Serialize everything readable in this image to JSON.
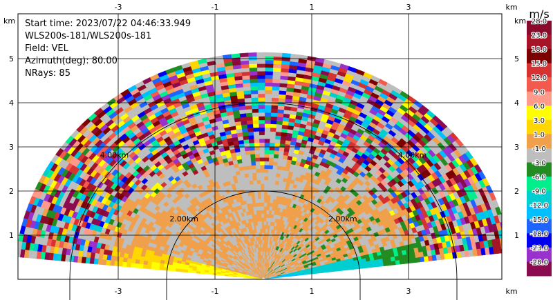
{
  "info": {
    "start_time": "Start time: 2023/07/22 04:46:33.949",
    "instrument": "WLS200s-181/WLS200s-181",
    "field": "Field: VEL",
    "azimuth": "Azimuth(deg): 80.00",
    "nrays": "NRays: 85"
  },
  "chart_data": {
    "type": "heatmap",
    "subtype": "radar RHI (range-height) plot",
    "field": "VEL",
    "x_axis": {
      "unit_label": "km",
      "range": [
        -5.5,
        5.0
      ],
      "ticks": [
        -3,
        -1,
        1,
        3
      ]
    },
    "y_axis": {
      "unit_label": "km",
      "range": [
        0,
        5.6
      ],
      "ticks": [
        1,
        2,
        3,
        4,
        5
      ]
    },
    "range_rings": [
      {
        "radius_km": 2,
        "label": "2.00km"
      },
      {
        "radius_km": 4,
        "label": "4.00km"
      }
    ],
    "max_range_km": 5.1,
    "grid": true,
    "colorbar": {
      "unit": "m/s",
      "position": "right",
      "bins": [
        {
          "label": "28.0",
          "color": "#8a0a2c"
        },
        {
          "label": "23.0",
          "color": "#a51427"
        },
        {
          "label": "18.0",
          "color": "#7b0000"
        },
        {
          "label": "15.0",
          "color": "#d63232"
        },
        {
          "label": "12.0",
          "color": "#f25a4e"
        },
        {
          "label": "9.0",
          "color": "#ff9a8a"
        },
        {
          "label": "6.0",
          "color": "#ffff00"
        },
        {
          "label": "3.0",
          "color": "#ffd700"
        },
        {
          "label": "1.0",
          "color": "#f0a04b"
        },
        {
          "label": "-1.0",
          "color": "#bebebe"
        },
        {
          "label": "-3.0",
          "color": "#228b22"
        },
        {
          "label": "-6.0",
          "color": "#00ee8c"
        },
        {
          "label": "-9.0",
          "color": "#00ced1"
        },
        {
          "label": "-12.0",
          "color": "#00bfff"
        },
        {
          "label": "-15.0",
          "color": "#1e64ff"
        },
        {
          "label": "-18.0",
          "color": "#0000ee"
        },
        {
          "label": "-23.0",
          "color": "#9932cc"
        },
        {
          "label": "-28.0",
          "color": "#8b0a50"
        }
      ]
    }
  }
}
